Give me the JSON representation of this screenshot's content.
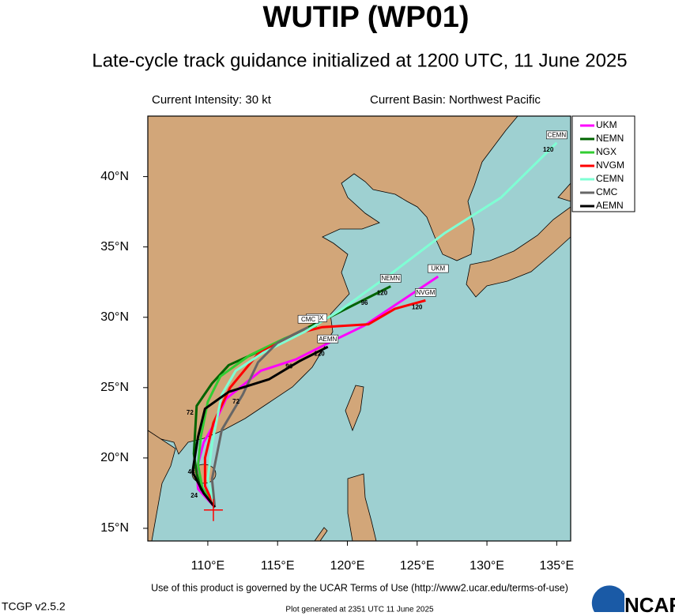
{
  "chart_data": {
    "type": "line",
    "title": "WUTIP (WP01)",
    "subtitle": "Late-cycle track guidance initialized at 1200 UTC, 11 June 2025",
    "intensity_text": "Current Intensity: 30 kt",
    "basin_text": "Current Basin: Northwest Pacific",
    "terms_text": "Use of this product is governed by the UCAR Terms of Use (http://www2.ucar.edu/terms-of-use)",
    "version_text": "TCGP v2.5.2",
    "generated_text": "Plot generated at 2351 UTC   11 June 2025",
    "logo_text": "NCAR",
    "xlim": [
      105.7,
      136
    ],
    "ylim": [
      14.1,
      44.3
    ],
    "xticks": [
      {
        "value": 110,
        "label": "110°E"
      },
      {
        "value": 115,
        "label": "115°E"
      },
      {
        "value": 120,
        "label": "120°E"
      },
      {
        "value": 125,
        "label": "125°E"
      },
      {
        "value": 130,
        "label": "130°E"
      },
      {
        "value": 135,
        "label": "135°E"
      }
    ],
    "yticks": [
      {
        "value": 15,
        "label": "15°N"
      },
      {
        "value": 20,
        "label": "20°N"
      },
      {
        "value": 25,
        "label": "25°N"
      },
      {
        "value": 30,
        "label": "30°N"
      },
      {
        "value": 35,
        "label": "35°N"
      },
      {
        "value": 40,
        "label": "40°N"
      }
    ],
    "grid": false,
    "legend": "outside-top-right",
    "current_position": {
      "x": 110.4,
      "y": 16.3,
      "color": "#ff0000"
    },
    "series": [
      {
        "name": "UKM",
        "color": "#ff00ff",
        "x": [
          110.5,
          109.3,
          109.2,
          109.7,
          110.5,
          111.3,
          113.8,
          116.3,
          118.9,
          121.2,
          126.5
        ],
        "values": [
          16.5,
          17.8,
          19.2,
          21.1,
          22.5,
          24.2,
          26.2,
          27.0,
          28.3,
          29.4,
          32.9
        ],
        "point_labels": [
          null,
          null,
          null,
          null,
          null,
          null,
          null,
          "96",
          null,
          null,
          null
        ]
      },
      {
        "name": "NEMN",
        "color": "#006400",
        "x": [
          110.5,
          109.5,
          109.2,
          109.0,
          109.2,
          110.3,
          111.5,
          114.4,
          116.6,
          118.9,
          121.7,
          123.1
        ],
        "values": [
          16.5,
          17.8,
          18.9,
          20.3,
          23.7,
          25.3,
          26.6,
          27.9,
          29.0,
          30.1,
          31.5,
          32.2
        ],
        "point_labels": [
          null,
          "24",
          null,
          null,
          "72",
          null,
          null,
          null,
          null,
          null,
          "96",
          "120"
        ]
      },
      {
        "name": "NGX",
        "color": "#32cd32",
        "x": [
          110.5,
          109.6,
          109.3,
          109.5,
          110.0,
          110.9,
          113.0,
          115.5,
          117.8
        ],
        "values": [
          16.5,
          17.9,
          19.5,
          21.5,
          24.0,
          25.8,
          27.3,
          28.5,
          29.4
        ],
        "point_labels": [
          null,
          null,
          "48",
          null,
          null,
          null,
          null,
          null,
          null
        ]
      },
      {
        "name": "NVGM",
        "color": "#ff0000",
        "x": [
          110.5,
          109.8,
          109.8,
          110.4,
          111.6,
          113.6,
          116.2,
          118.2,
          121.5,
          123.4,
          125.6
        ],
        "values": [
          16.5,
          18.0,
          20.0,
          22.5,
          25.0,
          27.4,
          28.8,
          29.3,
          29.5,
          30.6,
          31.2
        ],
        "point_labels": [
          null,
          null,
          null,
          null,
          null,
          null,
          null,
          null,
          null,
          null,
          "120"
        ]
      },
      {
        "name": "CEMN",
        "color": "#7fffd4",
        "x": [
          110.5,
          110.0,
          110.3,
          111.0,
          112.0,
          114.0,
          117.0,
          119.5,
          123.0,
          127.0,
          131.0,
          135.0
        ],
        "values": [
          16.5,
          18.5,
          21.0,
          24.5,
          26.2,
          27.5,
          29.0,
          30.5,
          33.0,
          36.0,
          38.5,
          42.4
        ],
        "point_labels": [
          null,
          null,
          null,
          null,
          null,
          null,
          null,
          null,
          null,
          null,
          null,
          "120"
        ]
      },
      {
        "name": "CMC",
        "color": "#666666",
        "x": [
          110.5,
          110.3,
          111.0,
          112.5,
          113.6,
          115.0,
          117.2
        ],
        "values": [
          16.5,
          18.5,
          22.0,
          24.5,
          26.8,
          28.2,
          29.3
        ],
        "point_labels": [
          null,
          null,
          null,
          "72",
          null,
          null,
          null
        ]
      },
      {
        "name": "AEMN",
        "color": "#000000",
        "x": [
          110.5,
          109.7,
          108.9,
          109.3,
          109.8,
          111.5,
          114.4,
          116.6,
          118.6
        ],
        "values": [
          16.5,
          17.5,
          19.0,
          21.5,
          23.5,
          24.7,
          25.6,
          26.9,
          27.9
        ],
        "point_labels": [
          null,
          null,
          null,
          null,
          null,
          null,
          null,
          null,
          "120"
        ]
      }
    ]
  }
}
